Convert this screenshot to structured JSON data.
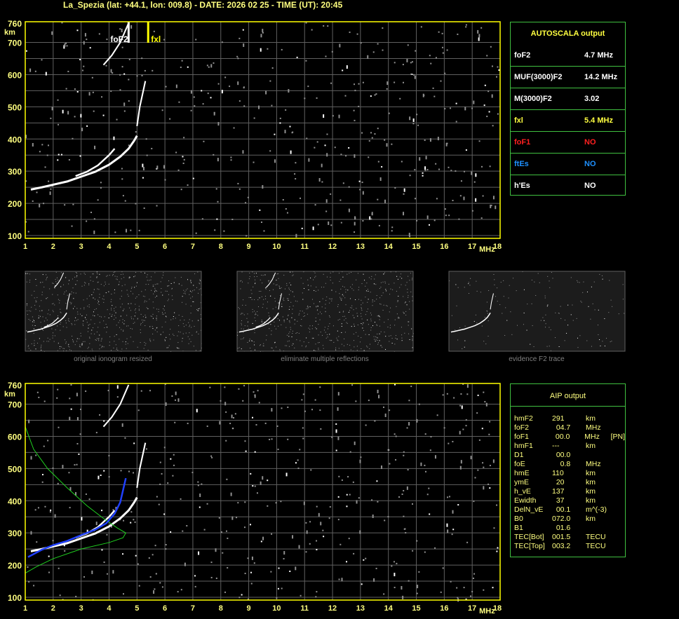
{
  "header": {
    "title": "La_Spezia (lat: +44.1, lon: 009.8) - DATE: 2026 02 25 - TIME (UT): 20:45"
  },
  "autoscala": {
    "title": "AUTOSCALA output",
    "rows": [
      {
        "label": "foF2",
        "value": "4.7 MHz",
        "color": "#ffffff"
      },
      {
        "label": "MUF(3000)F2",
        "value": "14.2 MHz",
        "color": "#ffffff"
      },
      {
        "label": "M(3000)F2",
        "value": "3.02",
        "color": "#ffffff"
      },
      {
        "label": "fxl",
        "value": "5.4 MHz",
        "color": "#ffff40"
      },
      {
        "label": "foF1",
        "value": "NO",
        "color": "#ff2020"
      },
      {
        "label": "ftEs",
        "value": "NO",
        "color": "#1e90ff"
      },
      {
        "label": "h'Es",
        "value": "NO",
        "color": "#ffffff"
      }
    ]
  },
  "aip": {
    "title": "AIP output",
    "rows": [
      [
        "hmF2",
        "291",
        "km",
        ""
      ],
      [
        "foF2",
        "  04.7",
        "MHz",
        ""
      ],
      [
        "foF1",
        "  00.0",
        "MHz",
        "[PN]"
      ],
      [
        "hmF1",
        "---",
        "km",
        ""
      ],
      [
        "D1",
        "  00.0",
        "",
        ""
      ],
      [
        "foE",
        "    0.8",
        "MHz",
        ""
      ],
      [
        "hmE",
        "110",
        "km",
        ""
      ],
      [
        "ymE",
        "  20",
        "km",
        ""
      ],
      [
        "h_vE",
        "137",
        "km",
        ""
      ],
      [
        "Ewidth",
        "  37",
        "km",
        ""
      ],
      [
        "DelN_vE",
        "  00.1",
        "m^(-3)",
        ""
      ],
      [
        "B0",
        "072.0",
        "km",
        ""
      ],
      [
        "B1",
        "  01.6",
        "",
        ""
      ],
      [
        "TEC[Bot]",
        "001.5",
        "TECU",
        ""
      ],
      [
        "TEC[Top]",
        "003.2",
        "TECU",
        ""
      ]
    ]
  },
  "captions": [
    "original ionogram resized",
    "eliminate multiple reflections",
    "evidence F2 trace"
  ],
  "chart_data": {
    "type": "scatter",
    "xlabel": "MHz",
    "ylabel": "km",
    "xlim": [
      1,
      18
    ],
    "ylim": [
      100,
      760
    ],
    "xticks": [
      1,
      2,
      3,
      4,
      5,
      6,
      7,
      8,
      9,
      10,
      11,
      12,
      13,
      14,
      15,
      16,
      17,
      18
    ],
    "yticks": [
      100,
      200,
      300,
      400,
      500,
      600,
      700,
      760
    ],
    "grid": true,
    "markers": [
      {
        "label": "foF2",
        "x": 4.7,
        "color": "#ffffff"
      },
      {
        "label": "fxl",
        "x": 5.4,
        "color": "#ffff00"
      }
    ],
    "traces": {
      "o_trace": [
        [
          1.2,
          243
        ],
        [
          1.6,
          250
        ],
        [
          2,
          258
        ],
        [
          2.5,
          268
        ],
        [
          3,
          283
        ],
        [
          3.5,
          298
        ],
        [
          4,
          320
        ],
        [
          4.4,
          345
        ],
        [
          4.7,
          370
        ],
        [
          4.9,
          395
        ],
        [
          5.0,
          410
        ]
      ],
      "x_trace": [
        [
          2.8,
          285
        ],
        [
          3.2,
          298
        ],
        [
          3.6,
          318
        ],
        [
          4.0,
          350
        ],
        [
          4.2,
          370
        ]
      ],
      "upper_trace": [
        [
          5.0,
          440
        ],
        [
          5.05,
          470
        ],
        [
          5.1,
          500
        ],
        [
          5.2,
          540
        ],
        [
          5.3,
          580
        ]
      ],
      "multiple_trace": [
        [
          3.8,
          630
        ],
        [
          4.1,
          660
        ],
        [
          4.4,
          700
        ],
        [
          4.7,
          760
        ]
      ],
      "aip_profile": [
        [
          1.1,
          225
        ],
        [
          1.6,
          248
        ],
        [
          2,
          262
        ],
        [
          2.5,
          275
        ],
        [
          3,
          293
        ],
        [
          3.5,
          310
        ],
        [
          3.9,
          330
        ],
        [
          4.2,
          360
        ],
        [
          4.4,
          395
        ],
        [
          4.6,
          470
        ]
      ],
      "model_curve": [
        [
          1.0,
          630
        ],
        [
          1.3,
          560
        ],
        [
          1.8,
          500
        ],
        [
          2.5,
          440
        ],
        [
          3.2,
          385
        ],
        [
          3.8,
          345
        ],
        [
          4.3,
          315
        ],
        [
          4.6,
          300
        ],
        [
          4.5,
          285
        ],
        [
          4.0,
          270
        ],
        [
          3.0,
          250
        ],
        [
          2.0,
          220
        ],
        [
          1.4,
          195
        ],
        [
          1.0,
          175
        ]
      ]
    }
  }
}
